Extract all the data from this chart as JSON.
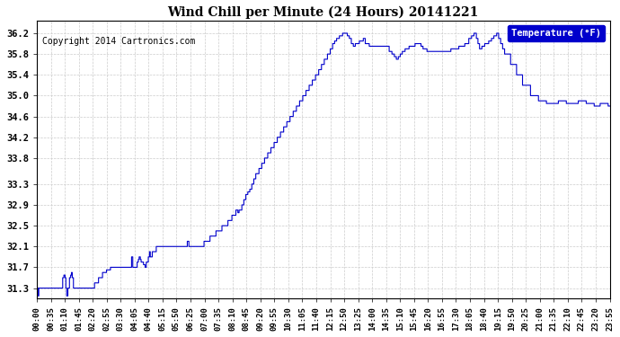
{
  "title": "Wind Chill per Minute (24 Hours) 20141221",
  "copyright_text": "Copyright 2014 Cartronics.com",
  "legend_label": "Temperature (°F)",
  "line_color": "#0000cc",
  "bg_color": "#ffffff",
  "plot_bg_color": "#ffffff",
  "grid_color": "#cccccc",
  "yticks": [
    31.3,
    31.7,
    32.1,
    32.5,
    32.9,
    33.3,
    33.8,
    34.2,
    34.6,
    35.0,
    35.4,
    35.8,
    36.2
  ],
  "ylim": [
    31.1,
    36.45
  ],
  "xtick_labels": [
    "00:00",
    "00:35",
    "01:10",
    "01:45",
    "02:20",
    "02:55",
    "03:30",
    "04:05",
    "04:40",
    "05:15",
    "05:50",
    "06:25",
    "07:00",
    "07:35",
    "08:10",
    "08:45",
    "09:20",
    "09:55",
    "10:30",
    "11:05",
    "11:40",
    "12:15",
    "12:50",
    "13:25",
    "14:00",
    "14:35",
    "15:10",
    "15:45",
    "16:20",
    "16:55",
    "17:30",
    "18:05",
    "18:40",
    "19:15",
    "19:50",
    "20:25",
    "21:00",
    "21:35",
    "22:10",
    "22:45",
    "23:20",
    "23:55"
  ]
}
